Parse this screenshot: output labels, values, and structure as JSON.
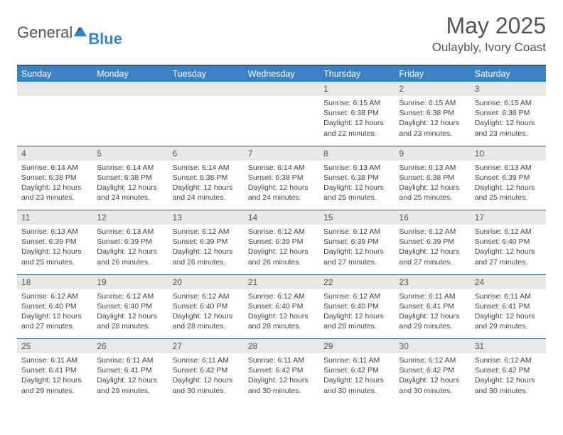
{
  "logo": {
    "general": "General",
    "blue": "Blue"
  },
  "title": "May 2025",
  "location": "Oulaybly, Ivory Coast",
  "colors": {
    "header_bg": "#3b82c4",
    "header_border": "#2a5c8a",
    "daynum_bg": "#e8e8e8"
  },
  "weekdays": [
    "Sunday",
    "Monday",
    "Tuesday",
    "Wednesday",
    "Thursday",
    "Friday",
    "Saturday"
  ],
  "weeks": [
    [
      null,
      null,
      null,
      null,
      {
        "d": "1",
        "sr": "6:15 AM",
        "ss": "6:38 PM",
        "dl": "12 hours and 22 minutes."
      },
      {
        "d": "2",
        "sr": "6:15 AM",
        "ss": "6:38 PM",
        "dl": "12 hours and 23 minutes."
      },
      {
        "d": "3",
        "sr": "6:15 AM",
        "ss": "6:38 PM",
        "dl": "12 hours and 23 minutes."
      }
    ],
    [
      {
        "d": "4",
        "sr": "6:14 AM",
        "ss": "6:38 PM",
        "dl": "12 hours and 23 minutes."
      },
      {
        "d": "5",
        "sr": "6:14 AM",
        "ss": "6:38 PM",
        "dl": "12 hours and 24 minutes."
      },
      {
        "d": "6",
        "sr": "6:14 AM",
        "ss": "6:38 PM",
        "dl": "12 hours and 24 minutes."
      },
      {
        "d": "7",
        "sr": "6:14 AM",
        "ss": "6:38 PM",
        "dl": "12 hours and 24 minutes."
      },
      {
        "d": "8",
        "sr": "6:13 AM",
        "ss": "6:38 PM",
        "dl": "12 hours and 25 minutes."
      },
      {
        "d": "9",
        "sr": "6:13 AM",
        "ss": "6:38 PM",
        "dl": "12 hours and 25 minutes."
      },
      {
        "d": "10",
        "sr": "6:13 AM",
        "ss": "6:39 PM",
        "dl": "12 hours and 25 minutes."
      }
    ],
    [
      {
        "d": "11",
        "sr": "6:13 AM",
        "ss": "6:39 PM",
        "dl": "12 hours and 25 minutes."
      },
      {
        "d": "12",
        "sr": "6:13 AM",
        "ss": "6:39 PM",
        "dl": "12 hours and 26 minutes."
      },
      {
        "d": "13",
        "sr": "6:12 AM",
        "ss": "6:39 PM",
        "dl": "12 hours and 26 minutes."
      },
      {
        "d": "14",
        "sr": "6:12 AM",
        "ss": "6:39 PM",
        "dl": "12 hours and 26 minutes."
      },
      {
        "d": "15",
        "sr": "6:12 AM",
        "ss": "6:39 PM",
        "dl": "12 hours and 27 minutes."
      },
      {
        "d": "16",
        "sr": "6:12 AM",
        "ss": "6:39 PM",
        "dl": "12 hours and 27 minutes."
      },
      {
        "d": "17",
        "sr": "6:12 AM",
        "ss": "6:40 PM",
        "dl": "12 hours and 27 minutes."
      }
    ],
    [
      {
        "d": "18",
        "sr": "6:12 AM",
        "ss": "6:40 PM",
        "dl": "12 hours and 27 minutes."
      },
      {
        "d": "19",
        "sr": "6:12 AM",
        "ss": "6:40 PM",
        "dl": "12 hours and 28 minutes."
      },
      {
        "d": "20",
        "sr": "6:12 AM",
        "ss": "6:40 PM",
        "dl": "12 hours and 28 minutes."
      },
      {
        "d": "21",
        "sr": "6:12 AM",
        "ss": "6:40 PM",
        "dl": "12 hours and 28 minutes."
      },
      {
        "d": "22",
        "sr": "6:12 AM",
        "ss": "6:40 PM",
        "dl": "12 hours and 28 minutes."
      },
      {
        "d": "23",
        "sr": "6:11 AM",
        "ss": "6:41 PM",
        "dl": "12 hours and 29 minutes."
      },
      {
        "d": "24",
        "sr": "6:11 AM",
        "ss": "6:41 PM",
        "dl": "12 hours and 29 minutes."
      }
    ],
    [
      {
        "d": "25",
        "sr": "6:11 AM",
        "ss": "6:41 PM",
        "dl": "12 hours and 29 minutes."
      },
      {
        "d": "26",
        "sr": "6:11 AM",
        "ss": "6:41 PM",
        "dl": "12 hours and 29 minutes."
      },
      {
        "d": "27",
        "sr": "6:11 AM",
        "ss": "6:42 PM",
        "dl": "12 hours and 30 minutes."
      },
      {
        "d": "28",
        "sr": "6:11 AM",
        "ss": "6:42 PM",
        "dl": "12 hours and 30 minutes."
      },
      {
        "d": "29",
        "sr": "6:11 AM",
        "ss": "6:42 PM",
        "dl": "12 hours and 30 minutes."
      },
      {
        "d": "30",
        "sr": "6:12 AM",
        "ss": "6:42 PM",
        "dl": "12 hours and 30 minutes."
      },
      {
        "d": "31",
        "sr": "6:12 AM",
        "ss": "6:42 PM",
        "dl": "12 hours and 30 minutes."
      }
    ]
  ],
  "labels": {
    "sunrise": "Sunrise:",
    "sunset": "Sunset:",
    "daylight": "Daylight:"
  }
}
